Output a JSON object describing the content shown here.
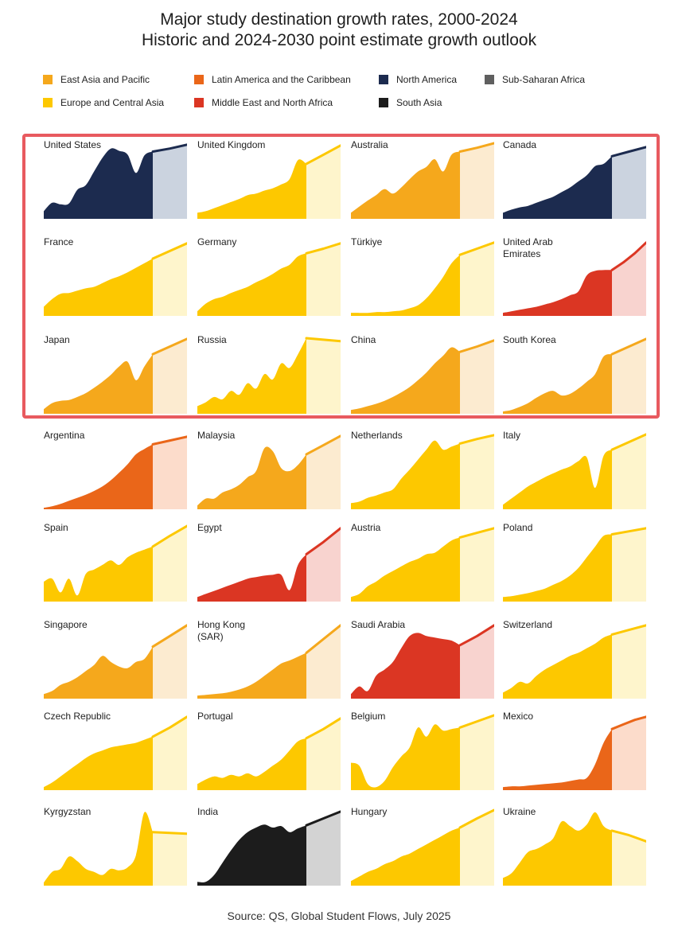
{
  "title_line1": "Major study destination growth rates, 2000-2024",
  "title_line2": "Historic and 2024-2030 point estimate growth outlook",
  "source": "Source: QS, Global Student Flows, July 2025",
  "regions": {
    "East Asia and Pacific": {
      "color": "#f5a81c",
      "light": "#fcebd0"
    },
    "Europe and Central Asia": {
      "color": "#fdc800",
      "light": "#fef5cc"
    },
    "Latin America and the Caribbean": {
      "color": "#ea6619",
      "light": "#fcdccb"
    },
    "Middle East and North Africa": {
      "color": "#db3623",
      "light": "#f8d3cf"
    },
    "North America": {
      "color": "#1c2b4f",
      "light": "#cbd3df"
    },
    "South Asia": {
      "color": "#1c1c1c",
      "light": "#d3d3d3"
    },
    "Sub-Saharan Africa": {
      "color": "#5f5f5f",
      "light": "#dcdcdc"
    }
  },
  "legend": [
    {
      "label": "East Asia and Pacific",
      "color": "#f5a81c"
    },
    {
      "label": "Europe and Central Asia",
      "color": "#fdc800"
    },
    {
      "label": "Latin America and the Caribbean",
      "color": "#ea6619"
    },
    {
      "label": "Middle East and North Africa",
      "color": "#db3623"
    },
    {
      "label": "North America",
      "color": "#1c2b4f"
    },
    {
      "label": "South Asia",
      "color": "#1c1c1c"
    },
    {
      "label": "Sub-Saharan Africa",
      "color": "#5f5f5f"
    }
  ],
  "chart_data": {
    "type": "area",
    "layout": "small-multiples",
    "highlighted_countries": [
      "United States",
      "United Kingdom",
      "Australia",
      "Canada",
      "France",
      "Germany",
      "Türkiye",
      "United Arab Emirates",
      "Japan",
      "Russia",
      "China",
      "South Korea"
    ],
    "series": [
      {
        "name": "United States",
        "region": "North America",
        "historic": [
          10,
          21,
          19,
          20,
          38,
          44,
          62,
          80,
          92,
          89,
          84,
          60,
          83,
          88
        ],
        "outlook": [
          88,
          92,
          97
        ]
      },
      {
        "name": "United Kingdom",
        "region": "Europe and Central Asia",
        "historic": [
          8,
          10,
          14,
          18,
          22,
          26,
          31,
          33,
          37,
          40,
          45,
          52,
          77,
          72
        ],
        "outlook": [
          72,
          84,
          96
        ]
      },
      {
        "name": "Australia",
        "region": "East Asia and Pacific",
        "historic": [
          8,
          16,
          24,
          31,
          39,
          33,
          41,
          52,
          62,
          68,
          78,
          62,
          84,
          88
        ],
        "outlook": [
          88,
          93,
          99
        ]
      },
      {
        "name": "Canada",
        "region": "North America",
        "historic": [
          8,
          12,
          15,
          17,
          21,
          25,
          29,
          35,
          41,
          49,
          57,
          69,
          72,
          82
        ],
        "outlook": [
          82,
          88,
          94
        ]
      },
      {
        "name": "France",
        "region": "Europe and Central Asia",
        "historic": [
          12,
          22,
          29,
          30,
          33,
          36,
          38,
          43,
          48,
          52,
          57,
          63,
          69,
          75
        ],
        "outlook": [
          75,
          85,
          95
        ]
      },
      {
        "name": "Germany",
        "region": "Europe and Central Asia",
        "historic": [
          6,
          16,
          22,
          25,
          30,
          34,
          38,
          44,
          49,
          55,
          62,
          67,
          78,
          82
        ],
        "outlook": [
          82,
          88,
          95
        ]
      },
      {
        "name": "Türkiye",
        "region": "Europe and Central Asia",
        "historic": [
          4,
          4,
          4,
          5,
          5,
          6,
          7,
          10,
          14,
          23,
          36,
          51,
          69,
          80
        ],
        "outlook": [
          80,
          88,
          96
        ]
      },
      {
        "name": "United Arab Emirates",
        "region": "Middle East and North Africa",
        "historic": [
          4,
          6,
          8,
          10,
          12,
          15,
          18,
          22,
          27,
          32,
          53,
          59,
          60,
          60
        ],
        "outlook": [
          60,
          70,
          82,
          96
        ]
      },
      {
        "name": "Japan",
        "region": "East Asia and Pacific",
        "historic": [
          6,
          14,
          17,
          18,
          22,
          27,
          34,
          42,
          51,
          62,
          68,
          44,
          62,
          78
        ],
        "outlook": [
          78,
          88,
          98
        ]
      },
      {
        "name": "Russia",
        "region": "Europe and Central Asia",
        "historic": [
          10,
          15,
          22,
          19,
          30,
          25,
          40,
          33,
          52,
          45,
          66,
          60,
          78,
          99
        ],
        "outlook": [
          99,
          97,
          95
        ]
      },
      {
        "name": "China",
        "region": "East Asia and Pacific",
        "historic": [
          5,
          7,
          10,
          13,
          17,
          22,
          28,
          35,
          44,
          54,
          66,
          76,
          87,
          81
        ],
        "outlook": [
          81,
          88,
          96
        ]
      },
      {
        "name": "South Korea",
        "region": "East Asia and Pacific",
        "historic": [
          3,
          5,
          9,
          14,
          21,
          27,
          30,
          24,
          26,
          33,
          42,
          52,
          75,
          78
        ],
        "outlook": [
          78,
          88,
          98
        ]
      },
      {
        "name": "Argentina",
        "region": "Latin America and the Caribbean",
        "historic": [
          2,
          4,
          7,
          11,
          15,
          19,
          24,
          30,
          38,
          48,
          59,
          72,
          79,
          85
        ],
        "outlook": [
          85,
          90,
          95
        ]
      },
      {
        "name": "Malaysia",
        "region": "East Asia and Pacific",
        "historic": [
          5,
          14,
          14,
          22,
          26,
          32,
          42,
          50,
          80,
          76,
          54,
          50,
          58,
          72
        ],
        "outlook": [
          72,
          84,
          96
        ]
      },
      {
        "name": "Netherlands",
        "region": "Europe and Central Asia",
        "historic": [
          8,
          10,
          15,
          18,
          22,
          26,
          40,
          52,
          65,
          78,
          90,
          78,
          82,
          86
        ],
        "outlook": [
          86,
          92,
          97
        ]
      },
      {
        "name": "Italy",
        "region": "Europe and Central Asia",
        "historic": [
          6,
          14,
          22,
          30,
          36,
          42,
          47,
          52,
          56,
          63,
          68,
          28,
          70,
          78
        ],
        "outlook": [
          78,
          88,
          98
        ]
      },
      {
        "name": "Spain",
        "region": "Europe and Central Asia",
        "historic": [
          26,
          30,
          12,
          30,
          8,
          36,
          42,
          48,
          54,
          48,
          58,
          64,
          68,
          72
        ],
        "outlook": [
          72,
          86,
          99
        ]
      },
      {
        "name": "Egypt",
        "region": "Middle East and North Africa",
        "historic": [
          6,
          10,
          14,
          18,
          22,
          26,
          30,
          32,
          34,
          35,
          35,
          15,
          48,
          62
        ],
        "outlook": [
          62,
          78,
          96
        ]
      },
      {
        "name": "Austria",
        "region": "Europe and Central Asia",
        "historic": [
          6,
          10,
          20,
          26,
          34,
          40,
          46,
          52,
          56,
          62,
          64,
          72,
          80,
          84
        ],
        "outlook": [
          84,
          90,
          96
        ]
      },
      {
        "name": "Poland",
        "region": "Europe and Central Asia",
        "historic": [
          6,
          7,
          9,
          11,
          14,
          17,
          22,
          27,
          34,
          44,
          58,
          72,
          86,
          88
        ],
        "outlook": [
          88,
          92,
          96
        ]
      },
      {
        "name": "Singapore",
        "region": "East Asia and Pacific",
        "historic": [
          6,
          10,
          18,
          22,
          28,
          36,
          44,
          56,
          48,
          42,
          40,
          48,
          52,
          68
        ],
        "outlook": [
          68,
          82,
          96
        ]
      },
      {
        "name": "Hong Kong (SAR)",
        "region": "East Asia and Pacific",
        "historic": [
          4,
          5,
          6,
          7,
          9,
          12,
          16,
          22,
          30,
          38,
          46,
          50,
          55,
          60
        ],
        "outlook": [
          60,
          78,
          96
        ]
      },
      {
        "name": "Saudi Arabia",
        "region": "Middle East and North Africa",
        "historic": [
          6,
          16,
          10,
          30,
          38,
          48,
          66,
          82,
          86,
          82,
          80,
          78,
          76,
          70
        ],
        "outlook": [
          70,
          82,
          96
        ]
      },
      {
        "name": "Switzerland",
        "region": "Europe and Central Asia",
        "historic": [
          8,
          14,
          22,
          20,
          30,
          38,
          44,
          50,
          56,
          60,
          66,
          72,
          80,
          84
        ],
        "outlook": [
          84,
          90,
          96
        ]
      },
      {
        "name": "Czech Republic",
        "region": "Europe and Central Asia",
        "historic": [
          4,
          10,
          18,
          26,
          34,
          42,
          48,
          52,
          56,
          58,
          60,
          62,
          66,
          70
        ],
        "outlook": [
          70,
          82,
          96
        ]
      },
      {
        "name": "Portugal",
        "region": "Europe and Central Asia",
        "historic": [
          8,
          14,
          18,
          16,
          20,
          18,
          22,
          18,
          24,
          32,
          40,
          52,
          64,
          68
        ],
        "outlook": [
          68,
          80,
          94
        ]
      },
      {
        "name": "Belgium",
        "region": "Europe and Central Asia",
        "historic": [
          36,
          32,
          8,
          4,
          12,
          30,
          44,
          56,
          82,
          70,
          86,
          78,
          80,
          82
        ],
        "outlook": [
          82,
          90,
          98
        ]
      },
      {
        "name": "Mexico",
        "region": "Latin America and the Caribbean",
        "historic": [
          4,
          5,
          5,
          6,
          7,
          8,
          9,
          10,
          12,
          14,
          16,
          34,
          62,
          80
        ],
        "outlook": [
          80,
          86,
          92,
          96
        ]
      },
      {
        "name": "Kyrgyzstan",
        "region": "Europe and Central Asia",
        "historic": [
          4,
          18,
          22,
          38,
          32,
          22,
          18,
          14,
          22,
          20,
          24,
          40,
          96,
          70
        ],
        "outlook": [
          70,
          69,
          68
        ]
      },
      {
        "name": "India",
        "region": "South Asia",
        "historic": [
          5,
          5,
          14,
          30,
          46,
          60,
          70,
          76,
          80,
          76,
          78,
          70,
          75,
          79
        ],
        "outlook": [
          79,
          88,
          97
        ]
      },
      {
        "name": "Hungary",
        "region": "Europe and Central Asia",
        "historic": [
          6,
          12,
          18,
          22,
          28,
          32,
          38,
          42,
          48,
          54,
          60,
          66,
          72,
          76
        ],
        "outlook": [
          76,
          88,
          99
        ]
      },
      {
        "name": "Ukraine",
        "region": "Europe and Central Asia",
        "historic": [
          10,
          16,
          30,
          44,
          48,
          54,
          62,
          84,
          78,
          72,
          80,
          96,
          78,
          72
        ],
        "outlook": [
          72,
          66,
          58
        ]
      }
    ]
  }
}
